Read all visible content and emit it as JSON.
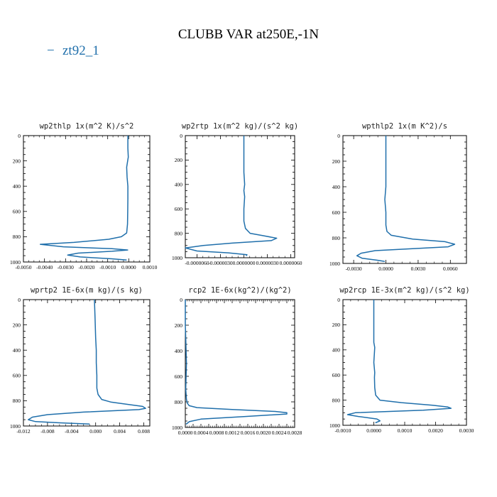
{
  "figure": {
    "title": "CLUBB VAR at250E,-1N",
    "legend_label": "zt92_1",
    "legend_marker": "−",
    "line_color": "#1f6fab"
  },
  "chart_data": [
    {
      "type": "line",
      "title": "wp2thlp  1x(m^2 K)/s^2",
      "xlabel": "",
      "ylabel": "",
      "xlim": [
        -0.005,
        0.001
      ],
      "ylim": [
        1000,
        0
      ],
      "xticks": [
        -0.005,
        -0.004,
        -0.003,
        -0.002,
        -0.001,
        0.0,
        0.001
      ],
      "xticklabels": [
        "-0.0050",
        "-0.0040",
        "-0.0030",
        "-0.0020",
        "-0.0010",
        "0.0000",
        "0.0010"
      ],
      "yticks": [
        0,
        200,
        400,
        600,
        800,
        1000
      ],
      "series": [
        {
          "name": "zt92_1",
          "x": [
            -4e-05,
            -4e-05,
            -2e-05,
            -4e-05,
            -0.0001,
            -8e-05,
            -4e-05,
            -4e-05,
            -5e-05,
            -6e-05,
            -0.0001,
            -0.00035,
            -0.00095,
            -0.0026,
            -0.0042,
            -0.0031,
            -0.0008,
            -5e-05,
            -0.0008,
            -0.0024,
            -0.0029,
            -0.0023,
            -0.0008,
            -0.0001
          ],
          "y": [
            0,
            100,
            170,
            190,
            250,
            330,
            400,
            500,
            600,
            700,
            770,
            800,
            820,
            845,
            860,
            880,
            895,
            905,
            915,
            930,
            945,
            960,
            975,
            985
          ]
        }
      ]
    },
    {
      "type": "line",
      "title": "wp2rtp  1x(m^2 kg)/(s^2 kg)",
      "xlabel": "",
      "ylabel": "",
      "xlim": [
        -7.5e-06,
        6.5e-06
      ],
      "ylim": [
        1000,
        0
      ],
      "xticks": [
        -6e-06,
        -3e-06,
        0.0,
        3e-06,
        6e-06
      ],
      "xticklabels": [
        "-0.0000060",
        "-0.0000030",
        "0.0000000",
        "0.0000030",
        "0.0000060"
      ],
      "yticks": [
        0,
        200,
        400,
        600,
        800,
        1000
      ],
      "series": [
        {
          "name": "zt92_1",
          "x": [
            0.0,
            0.0,
            0.0,
            1e-07,
            0.0,
            1e-07,
            0.0,
            0.0,
            2e-07,
            8e-07,
            2.5e-06,
            4.2e-06,
            3.5e-06,
            -1.5e-06,
            -5.2e-06,
            -7.5e-06,
            -6e-06,
            -2e-06,
            4e-07,
            3e-07
          ],
          "y": [
            0,
            150,
            300,
            400,
            450,
            500,
            600,
            700,
            760,
            800,
            820,
            840,
            860,
            880,
            900,
            920,
            945,
            960,
            975,
            985
          ]
        }
      ]
    },
    {
      "type": "line",
      "title": "wpthlp2  1x(m K^2)/s",
      "xlabel": "",
      "ylabel": "",
      "xlim": [
        -0.004,
        0.0075
      ],
      "ylim": [
        1000,
        0
      ],
      "xticks": [
        -0.003,
        0.0,
        0.003,
        0.006
      ],
      "xticklabels": [
        "-0.0030",
        "0.0000",
        "0.0030",
        "0.0060"
      ],
      "yticks": [
        0,
        200,
        400,
        600,
        800,
        1000
      ],
      "series": [
        {
          "name": "zt92_1",
          "x": [
            0.0,
            0.0,
            0.0,
            0.0,
            -0.0001,
            0.0,
            0.0,
            0.0001,
            0.0005,
            0.0025,
            0.0055,
            0.0064,
            0.0058,
            -0.001,
            -0.0023,
            -0.0027,
            -0.0022,
            -0.0008,
            -0.0001
          ],
          "y": [
            0,
            150,
            300,
            400,
            500,
            600,
            700,
            750,
            780,
            810,
            830,
            850,
            870,
            900,
            920,
            940,
            960,
            975,
            985
          ]
        }
      ]
    },
    {
      "type": "line",
      "title": "wprtp2  1E-6x(m kg)/(s kg)",
      "xlabel": "",
      "ylabel": "",
      "xlim": [
        -0.012,
        0.009
      ],
      "ylim": [
        1000,
        0
      ],
      "xticks": [
        -0.012,
        -0.008,
        -0.004,
        0.0,
        0.004,
        0.008
      ],
      "xticklabels": [
        "-0.012",
        "-0.008",
        "-0.004",
        "0.000",
        "0.004",
        "0.008"
      ],
      "yticks": [
        0,
        200,
        400,
        600,
        800,
        1000
      ],
      "series": [
        {
          "name": "zt92_1",
          "x": [
            -0.0002,
            -0.0001,
            0.0,
            0.0001,
            0.0001,
            0.0002,
            0.0002,
            0.0004,
            0.001,
            0.0025,
            0.0055,
            0.0078,
            0.0083,
            0.0072,
            -0.002,
            -0.008,
            -0.0105,
            -0.0112,
            -0.01,
            -0.006,
            -0.001
          ],
          "y": [
            0,
            150,
            300,
            400,
            500,
            600,
            700,
            750,
            790,
            810,
            830,
            845,
            860,
            870,
            890,
            910,
            930,
            950,
            965,
            975,
            985
          ]
        }
      ]
    },
    {
      "type": "line",
      "title": "rcp2  1E-6x(kg^2)/(kg^2)",
      "xlabel": "",
      "ylabel": "",
      "xlim": [
        0.0,
        0.0028
      ],
      "ylim": [
        1000,
        0
      ],
      "xticks": [
        0.0,
        0.0002,
        0.0004,
        0.0006,
        0.0008,
        0.001,
        0.0012,
        0.0014,
        0.0016,
        0.0018,
        0.002,
        0.0022,
        0.0024,
        0.0026,
        0.0028
      ],
      "xticklabels": [
        "0.0000",
        "",
        "0.0004",
        "",
        "0.0008",
        "",
        "0.0012",
        "",
        "0.0016",
        "",
        "0.0020",
        "",
        "0.0024",
        "",
        "0.0028"
      ],
      "yticks": [
        0,
        200,
        400,
        600,
        800,
        1000
      ],
      "series": [
        {
          "name": "zt92_1",
          "x": [
            0.0,
            0.0,
            1e-05,
            2e-05,
            3e-05,
            2e-05,
            1e-05,
            3e-05,
            5e-05,
            0.0001,
            0.0003,
            0.0012,
            0.0023,
            0.0026,
            0.0026,
            0.0015,
            0.0004,
            0.0001,
            2e-05
          ],
          "y": [
            0,
            200,
            300,
            400,
            500,
            600,
            700,
            780,
            810,
            830,
            845,
            860,
            875,
            885,
            895,
            915,
            935,
            955,
            975
          ]
        }
      ]
    },
    {
      "type": "line",
      "title": "wp2rcp  1E-3x(m^2 kg)/(s^2 kg)",
      "xlabel": "",
      "ylabel": "",
      "xlim": [
        -0.001,
        0.003
      ],
      "ylim": [
        1000,
        0
      ],
      "xticks": [
        -0.001,
        0.0,
        0.001,
        0.002,
        0.003
      ],
      "xticklabels": [
        "-0.0010",
        "0.0000",
        "0.0010",
        "0.0020",
        "0.0030"
      ],
      "yticks": [
        0,
        200,
        400,
        600,
        800,
        1000
      ],
      "series": [
        {
          "name": "zt92_1",
          "x": [
            0.0,
            0.0,
            0.0,
            3e-05,
            2e-05,
            0.0,
            3e-05,
            2e-05,
            3e-05,
            6e-05,
            0.0002,
            0.0009,
            0.0019,
            0.0024,
            0.0025,
            0.0016,
            -0.0006,
            -0.00085,
            -0.0005,
            0.0001,
            0.0002,
            5e-05
          ],
          "y": [
            0,
            200,
            340,
            380,
            420,
            500,
            580,
            620,
            700,
            760,
            800,
            820,
            840,
            855,
            865,
            880,
            900,
            915,
            930,
            950,
            965,
            980
          ]
        }
      ]
    }
  ]
}
